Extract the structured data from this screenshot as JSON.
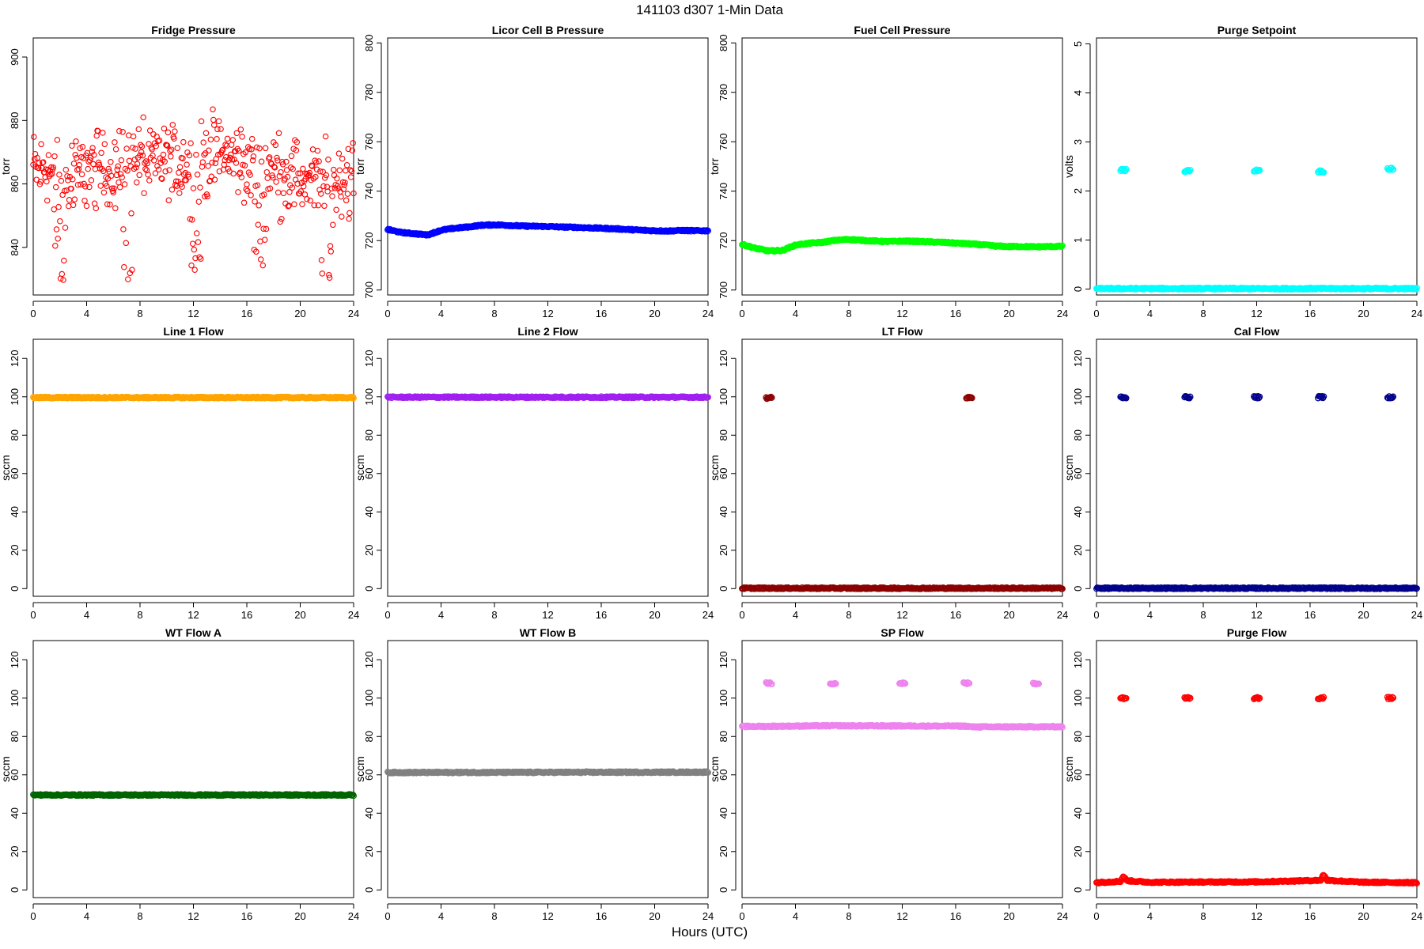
{
  "figure": {
    "title": "141103   d307   1-Min Data",
    "xlabel": "Hours (UTC)"
  },
  "chart_data": [
    {
      "type": "scatter",
      "title": "Fridge Pressure",
      "ylabel": "torr",
      "xlim": [
        0,
        24
      ],
      "ylim": [
        825,
        906
      ],
      "xticks": [
        0,
        4,
        8,
        12,
        16,
        20,
        24
      ],
      "yticks": [
        840,
        860,
        880,
        900
      ],
      "color": "#ff0000",
      "marker": "open-circle",
      "grid": false,
      "series": [
        {
          "x": [
            0,
            0.5,
            1,
            1.5,
            2,
            2.5,
            3,
            3.5,
            4,
            4.5,
            5,
            5.5,
            6,
            6.5,
            7,
            7.5,
            8,
            8.5,
            9,
            9.5,
            10,
            10.5,
            11,
            11.5,
            12,
            12.5,
            13,
            13.5,
            14,
            14.5,
            15,
            15.5,
            16,
            16.5,
            17,
            17.5,
            18,
            18.5,
            19,
            19.5,
            20,
            20.5,
            21,
            21.5,
            22,
            22.5,
            23,
            23.5,
            24
          ],
          "values": [
            865,
            864,
            866,
            862,
            860,
            859,
            861,
            863,
            865,
            864,
            866,
            865,
            864,
            865,
            866,
            867,
            868,
            867,
            866,
            867,
            868,
            867,
            866,
            867,
            866,
            867,
            868,
            869,
            870,
            869,
            868,
            867,
            866,
            866,
            864,
            865,
            865,
            864,
            863,
            862,
            862,
            861,
            861,
            860,
            861,
            861,
            862,
            862,
            862
          ],
          "spread": 13,
          "spikes": [
            {
              "x": 2,
              "min": 827
            },
            {
              "x": 7,
              "min": 829
            },
            {
              "x": 12.2,
              "min": 830
            },
            {
              "x": 17,
              "min": 832
            },
            {
              "x": 22,
              "min": 826
            }
          ]
        }
      ]
    },
    {
      "type": "scatter",
      "title": "Licor Cell B Pressure",
      "ylabel": "torr",
      "xlim": [
        0,
        24
      ],
      "ylim": [
        698,
        802
      ],
      "xticks": [
        0,
        4,
        8,
        12,
        16,
        20,
        24
      ],
      "yticks": [
        700,
        720,
        740,
        760,
        780,
        800
      ],
      "color": "#0000ff",
      "marker": "open-circle",
      "grid": false,
      "series": [
        {
          "x": [
            0,
            1,
            2,
            3,
            4,
            5,
            6,
            7,
            8,
            9,
            10,
            11,
            12,
            13,
            14,
            15,
            16,
            17,
            18,
            19,
            20,
            21,
            22,
            23,
            24
          ],
          "values": [
            724.5,
            723.3,
            722.8,
            722.3,
            724.2,
            725.0,
            725.5,
            726.2,
            726.4,
            726.2,
            725.9,
            725.8,
            725.7,
            725.5,
            725.4,
            725.2,
            725.0,
            724.8,
            724.5,
            724.2,
            724.0,
            723.9,
            724.1,
            724.0,
            724.0
          ]
        }
      ]
    },
    {
      "type": "scatter",
      "title": "Fuel Cell Pressure",
      "ylabel": "torr",
      "xlim": [
        0,
        24
      ],
      "ylim": [
        698,
        802
      ],
      "xticks": [
        0,
        4,
        8,
        12,
        16,
        20,
        24
      ],
      "yticks": [
        700,
        720,
        740,
        760,
        780,
        800
      ],
      "color": "#00ff00",
      "marker": "open-circle",
      "grid": false,
      "series": [
        {
          "x": [
            0,
            1,
            2,
            3,
            4,
            5,
            6,
            7,
            8,
            9,
            10,
            11,
            12,
            13,
            14,
            15,
            16,
            17,
            18,
            19,
            20,
            21,
            22,
            23,
            24
          ],
          "values": [
            718.5,
            716.9,
            715.8,
            716.0,
            718.2,
            718.9,
            719.3,
            720.1,
            720.5,
            720.1,
            719.8,
            719.6,
            719.8,
            719.7,
            719.5,
            719.3,
            719.0,
            718.7,
            718.3,
            717.8,
            717.6,
            717.6,
            717.5,
            717.6,
            717.7
          ]
        }
      ]
    },
    {
      "type": "scatter",
      "title": "Purge Setpoint",
      "ylabel": "volts",
      "xlim": [
        0,
        24
      ],
      "ylim": [
        -0.12,
        5.12
      ],
      "xticks": [
        0,
        4,
        8,
        12,
        16,
        20,
        24
      ],
      "yticks": [
        0,
        1,
        2,
        3,
        4,
        5
      ],
      "color": "#00ffff",
      "marker": "open-circle",
      "grid": false,
      "series": [
        {
          "x": [
            0,
            24
          ],
          "values": [
            0.01,
            0.01
          ]
        }
      ],
      "events": [
        {
          "x": 2.0,
          "value": 2.43
        },
        {
          "x": 6.8,
          "value": 2.41
        },
        {
          "x": 12.0,
          "value": 2.42
        },
        {
          "x": 16.8,
          "value": 2.4
        },
        {
          "x": 22.0,
          "value": 2.45
        }
      ]
    },
    {
      "type": "scatter",
      "title": "Line 1 Flow",
      "ylabel": "sccm",
      "xlim": [
        0,
        24
      ],
      "ylim": [
        -4,
        130
      ],
      "xticks": [
        0,
        4,
        8,
        12,
        16,
        20,
        24
      ],
      "yticks": [
        0,
        20,
        40,
        60,
        80,
        100,
        120
      ],
      "color": "#ffa500",
      "marker": "open-circle",
      "grid": false,
      "series": [
        {
          "x": [
            0,
            24
          ],
          "values": [
            99.6,
            99.6
          ]
        }
      ]
    },
    {
      "type": "scatter",
      "title": "Line 2 Flow",
      "ylabel": "sccm",
      "xlim": [
        0,
        24
      ],
      "ylim": [
        -4,
        130
      ],
      "xticks": [
        0,
        4,
        8,
        12,
        16,
        20,
        24
      ],
      "yticks": [
        0,
        20,
        40,
        60,
        80,
        100,
        120
      ],
      "color": "#a020f0",
      "marker": "open-circle",
      "grid": false,
      "series": [
        {
          "x": [
            0,
            24
          ],
          "values": [
            99.8,
            99.8
          ]
        }
      ]
    },
    {
      "type": "scatter",
      "title": "LT Flow",
      "ylabel": "sccm",
      "xlim": [
        0,
        24
      ],
      "ylim": [
        -4,
        130
      ],
      "xticks": [
        0,
        4,
        8,
        12,
        16,
        20,
        24
      ],
      "yticks": [
        0,
        20,
        40,
        60,
        80,
        100,
        120
      ],
      "color": "#8b0000",
      "marker": "open-circle",
      "grid": false,
      "series": [
        {
          "x": [
            0,
            24
          ],
          "values": [
            0.2,
            0.2
          ]
        }
      ],
      "events": [
        {
          "x": 2.0,
          "value": 99.5
        },
        {
          "x": 17.0,
          "value": 99.5
        }
      ]
    },
    {
      "type": "scatter",
      "title": "Cal Flow",
      "ylabel": "sccm",
      "xlim": [
        0,
        24
      ],
      "ylim": [
        -4,
        130
      ],
      "xticks": [
        0,
        4,
        8,
        12,
        16,
        20,
        24
      ],
      "yticks": [
        0,
        20,
        40,
        60,
        80,
        100,
        120
      ],
      "color": "#00008b",
      "marker": "open-circle",
      "grid": false,
      "series": [
        {
          "x": [
            0,
            24
          ],
          "values": [
            0.2,
            0.2
          ]
        }
      ],
      "events": [
        {
          "x": 2.0,
          "value": 99.8
        },
        {
          "x": 6.8,
          "value": 99.8
        },
        {
          "x": 12.0,
          "value": 99.8
        },
        {
          "x": 16.8,
          "value": 99.8
        },
        {
          "x": 22.0,
          "value": 99.8
        }
      ]
    },
    {
      "type": "scatter",
      "title": "WT Flow A",
      "ylabel": "sccm",
      "xlim": [
        0,
        24
      ],
      "ylim": [
        -4,
        130
      ],
      "xticks": [
        0,
        4,
        8,
        12,
        16,
        20,
        24
      ],
      "yticks": [
        0,
        20,
        40,
        60,
        80,
        100,
        120
      ],
      "color": "#006400",
      "marker": "open-circle",
      "grid": false,
      "series": [
        {
          "x": [
            0,
            24
          ],
          "values": [
            49.5,
            49.5
          ]
        }
      ]
    },
    {
      "type": "scatter",
      "title": "WT Flow B",
      "ylabel": "sccm",
      "xlim": [
        0,
        24
      ],
      "ylim": [
        -4,
        130
      ],
      "xticks": [
        0,
        4,
        8,
        12,
        16,
        20,
        24
      ],
      "yticks": [
        0,
        20,
        40,
        60,
        80,
        100,
        120
      ],
      "color": "#808080",
      "marker": "open-circle",
      "grid": false,
      "series": [
        {
          "x": [
            0,
            24
          ],
          "values": [
            61.2,
            61.4
          ]
        }
      ]
    },
    {
      "type": "scatter",
      "title": "SP Flow",
      "ylabel": "sccm",
      "xlim": [
        0,
        24
      ],
      "ylim": [
        -4,
        130
      ],
      "xticks": [
        0,
        4,
        8,
        12,
        16,
        20,
        24
      ],
      "yticks": [
        0,
        20,
        40,
        60,
        80,
        100,
        120
      ],
      "color": "#ee82ee",
      "marker": "open-circle",
      "grid": false,
      "series": [
        {
          "x": [
            0,
            6.8,
            12,
            16.8,
            17.2,
            24
          ],
          "values": [
            85.2,
            85.6,
            85.5,
            85.4,
            85.0,
            85.1
          ]
        }
      ],
      "events": [
        {
          "x": 2.0,
          "value": 107.7
        },
        {
          "x": 6.8,
          "value": 107.7
        },
        {
          "x": 12.0,
          "value": 107.7
        },
        {
          "x": 16.8,
          "value": 107.7
        },
        {
          "x": 22.0,
          "value": 107.7
        }
      ]
    },
    {
      "type": "scatter",
      "title": "Purge Flow",
      "ylabel": "sccm",
      "xlim": [
        0,
        24
      ],
      "ylim": [
        -4,
        130
      ],
      "xticks": [
        0,
        4,
        8,
        12,
        16,
        20,
        24
      ],
      "yticks": [
        0,
        20,
        40,
        60,
        80,
        100,
        120
      ],
      "color": "#ff0000",
      "marker": "open-circle",
      "grid": false,
      "series": [
        {
          "x": [
            0,
            1.8,
            2.0,
            2.3,
            4,
            12,
            16.8,
            17.0,
            17.3,
            20,
            24
          ],
          "values": [
            3.8,
            4.5,
            7.0,
            4.8,
            4.0,
            4.2,
            5.0,
            8.0,
            5.0,
            4.0,
            3.8
          ]
        }
      ],
      "events": [
        {
          "x": 2.0,
          "value": 100.0
        },
        {
          "x": 6.8,
          "value": 100.0
        },
        {
          "x": 12.0,
          "value": 100.0
        },
        {
          "x": 16.8,
          "value": 100.0
        },
        {
          "x": 22.0,
          "value": 100.0
        }
      ]
    }
  ]
}
